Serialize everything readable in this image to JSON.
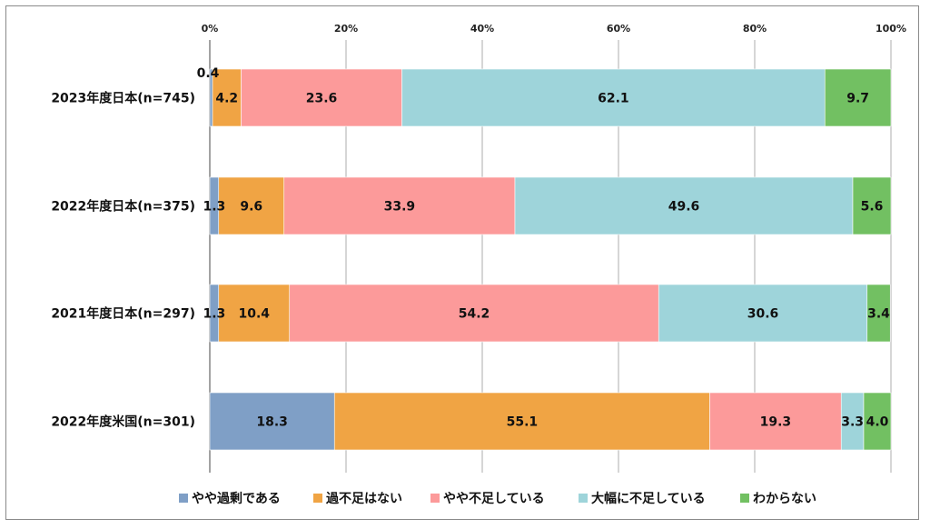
{
  "chart_data": {
    "type": "bar",
    "orientation": "horizontal",
    "stacked": true,
    "xlim": [
      0,
      100
    ],
    "x_ticks": [
      "0%",
      "20%",
      "40%",
      "60%",
      "80%",
      "100%"
    ],
    "categories": [
      "2023年度日本(n=745)",
      "2022年度日本(n=375)",
      "2021年度日本(n=297)",
      "2022年度米国(n=301)"
    ],
    "series": [
      {
        "name": "やや過剰である",
        "color": "#7f9fc6",
        "values": [
          0.4,
          1.3,
          1.3,
          18.3
        ],
        "labels": [
          "0.4",
          "1.3",
          "1.3",
          "18.3"
        ]
      },
      {
        "name": "過不足はない",
        "color": "#f0a444",
        "values": [
          4.2,
          9.6,
          10.4,
          55.1
        ],
        "labels": [
          "4.2",
          "9.6",
          "10.4",
          "55.1"
        ]
      },
      {
        "name": "やや不足している",
        "color": "#fc9a9a",
        "values": [
          23.6,
          33.9,
          54.2,
          19.3
        ],
        "labels": [
          "23.6",
          "33.9",
          "54.2",
          "19.3"
        ]
      },
      {
        "name": "大幅に不足している",
        "color": "#9ed4da",
        "values": [
          62.1,
          49.6,
          30.6,
          3.3
        ],
        "labels": [
          "62.1",
          "49.6",
          "30.6",
          "3.3"
        ]
      },
      {
        "name": "わからない",
        "color": "#72c062",
        "values": [
          9.7,
          5.6,
          3.4,
          4.0
        ],
        "labels": [
          "9.7",
          "5.6",
          "3.4",
          "4.0"
        ]
      }
    ],
    "grid": true,
    "legend": "bottom"
  }
}
